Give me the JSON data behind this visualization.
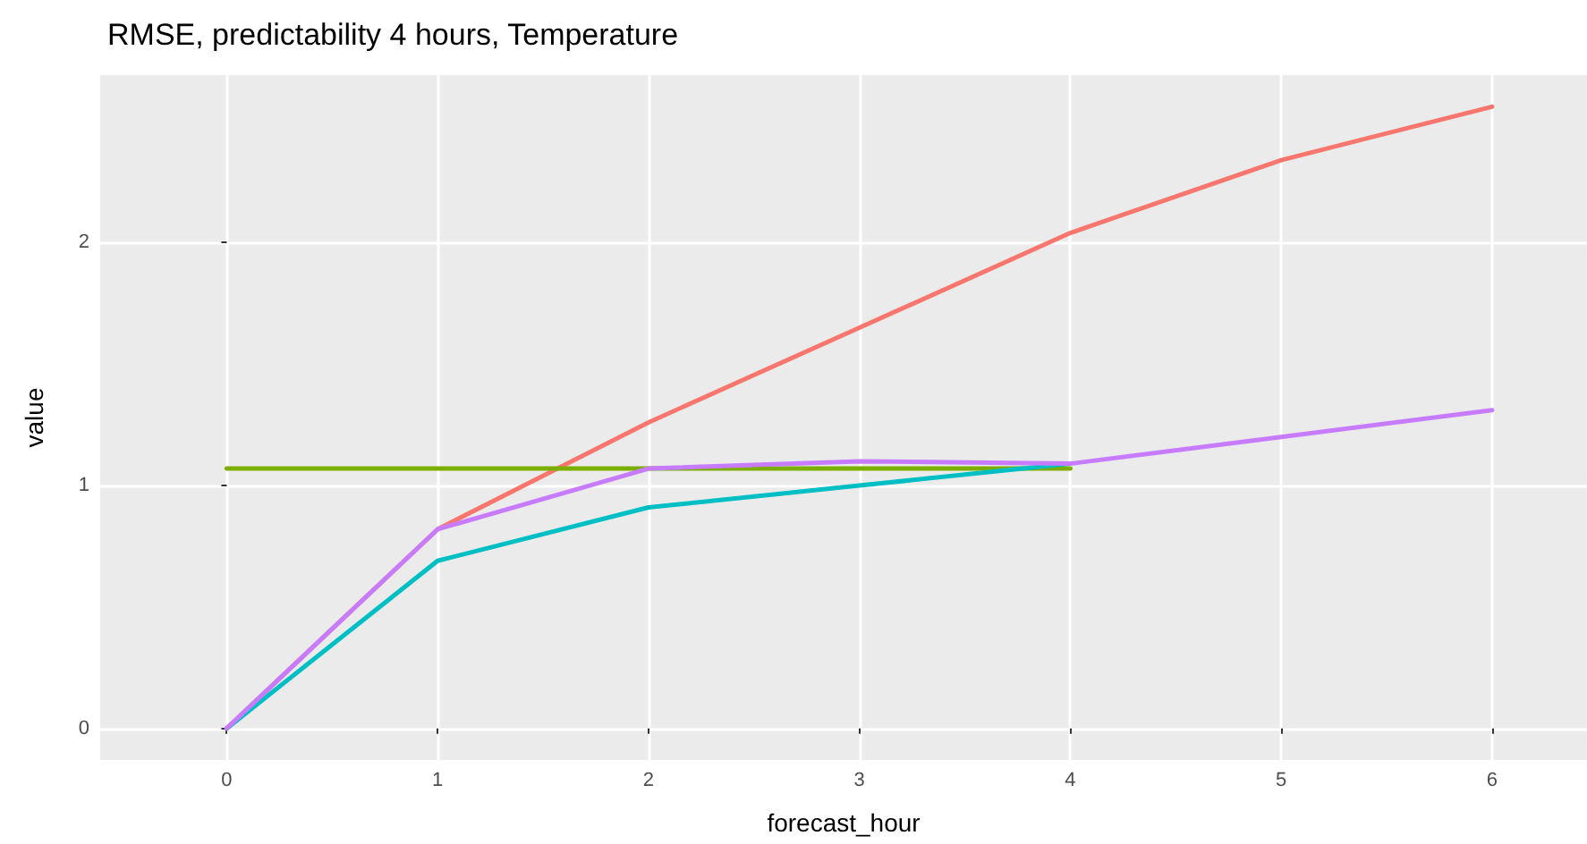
{
  "chart_data": {
    "type": "line",
    "title": "RMSE, predictability 4 hours, Temperature",
    "xlabel": "forecast_hour",
    "ylabel": "value",
    "xlim": [
      -0.6,
      6.45
    ],
    "xticks": [
      0,
      1,
      2,
      3,
      4,
      5,
      6
    ],
    "ylim": [
      -0.13,
      2.69
    ],
    "yticks": [
      0,
      1,
      2
    ],
    "grid": true,
    "series": [
      {
        "color": "#f8766d",
        "x": [
          0,
          1,
          2,
          3,
          4,
          5,
          6
        ],
        "values": [
          0,
          0.82,
          1.26,
          1.65,
          2.04,
          2.34,
          2.56
        ]
      },
      {
        "color": "#7cae00",
        "x": [
          0,
          1,
          2,
          3,
          4
        ],
        "values": [
          1.07,
          1.07,
          1.07,
          1.07,
          1.07
        ]
      },
      {
        "color": "#00bfc4",
        "x": [
          0,
          1,
          2,
          3,
          4
        ],
        "values": [
          0,
          0.69,
          0.91,
          1.0,
          1.09
        ]
      },
      {
        "color": "#c77cff",
        "x": [
          0,
          1,
          2,
          3,
          4,
          5,
          6
        ],
        "values": [
          0,
          0.82,
          1.07,
          1.1,
          1.09,
          1.2,
          1.31
        ]
      }
    ]
  }
}
